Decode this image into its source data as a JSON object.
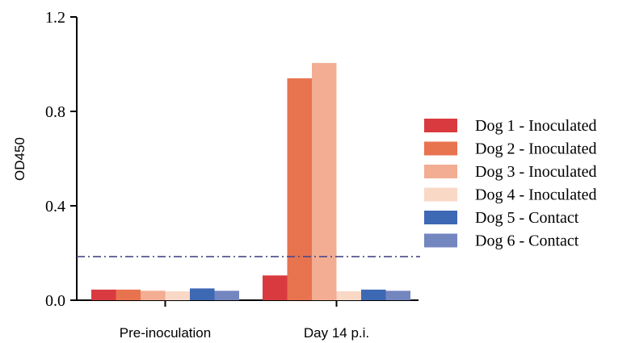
{
  "chart_data": {
    "type": "bar",
    "title": "",
    "xlabel": "",
    "ylabel": "OD450",
    "ylim": [
      0,
      1.2
    ],
    "yticks": [
      "0.0",
      "0.4",
      "0.8",
      "1.2"
    ],
    "categories": [
      "Pre-inoculation",
      "Day 14 p.i."
    ],
    "series": [
      {
        "name": "Dog 1 - Inoculated",
        "color": "#d93a3f",
        "values": [
          0.045,
          0.105
        ]
      },
      {
        "name": "Dog 2 - Inoculated",
        "color": "#e8734f",
        "values": [
          0.045,
          0.94
        ]
      },
      {
        "name": "Dog 3 - Inoculated",
        "color": "#f2ad92",
        "values": [
          0.04,
          1.005
        ]
      },
      {
        "name": "Dog 4 - Inoculated",
        "color": "#fad8c6",
        "values": [
          0.038,
          0.038
        ]
      },
      {
        "name": "Dog 5 - Contact",
        "color": "#3d68b3",
        "values": [
          0.05,
          0.045
        ]
      },
      {
        "name": "Dog 6 - Contact",
        "color": "#7486c0",
        "values": [
          0.04,
          0.04
        ]
      }
    ],
    "threshold": {
      "value": 0.185,
      "style": "dash-dot",
      "color": "#4a4a8a"
    },
    "grid": false,
    "legend_position": "right"
  }
}
